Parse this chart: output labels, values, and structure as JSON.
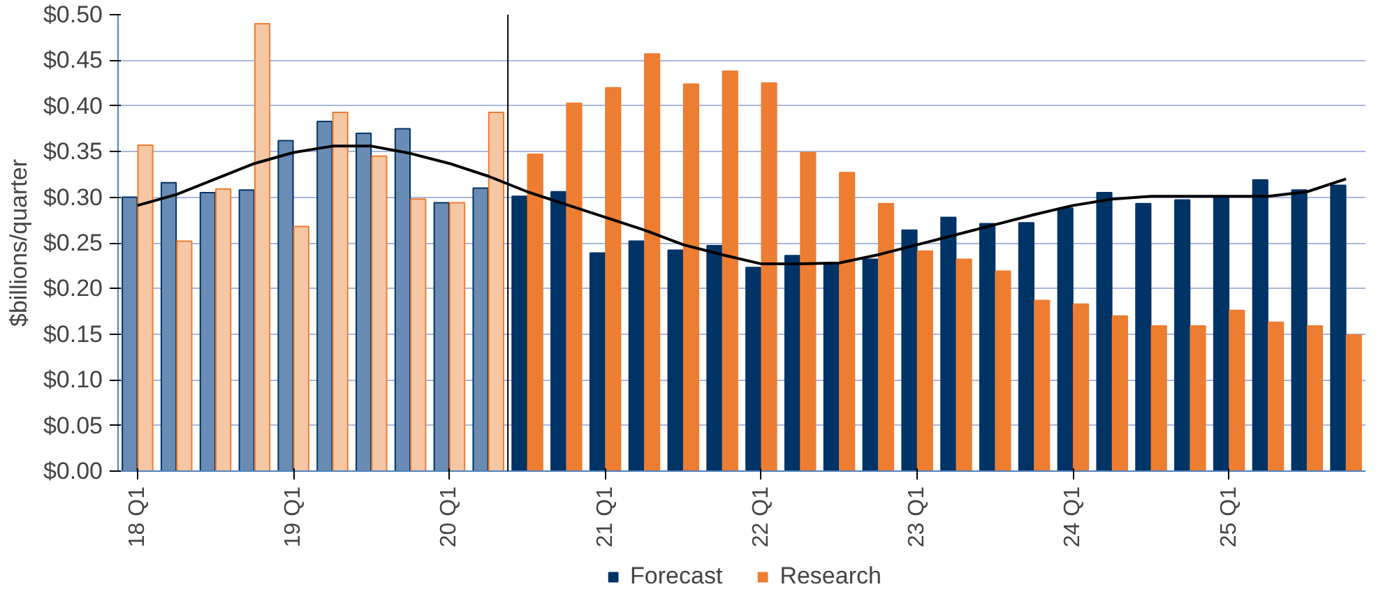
{
  "chart_data": {
    "type": "bar",
    "ylabel": "$billions/quarter",
    "categories": [
      "18 Q1",
      null,
      null,
      null,
      "19 Q1",
      null,
      null,
      null,
      "20 Q1",
      null,
      null,
      null,
      "21 Q1",
      null,
      null,
      null,
      "22 Q1",
      null,
      null,
      null,
      "23 Q1",
      null,
      null,
      null,
      "24 Q1",
      null,
      null,
      null,
      "25 Q1",
      null,
      null,
      null
    ],
    "series": [
      {
        "name": "Forecast",
        "color": "#003366",
        "colors": [
          "#6a8cb4",
          "#6a8cb4",
          "#6a8cb4",
          "#6a8cb4",
          "#6a8cb4",
          "#6a8cb4",
          "#6a8cb4",
          "#6a8cb4",
          "#6a8cb4",
          "#6a8cb4",
          "#003366",
          "#003366",
          "#003366",
          "#003366",
          "#003366",
          "#003366",
          "#003366",
          "#003366",
          "#003366",
          "#003366",
          "#003366",
          "#003366",
          "#003366",
          "#003366",
          "#003366",
          "#003366",
          "#003366",
          "#003366",
          "#003366",
          "#003366",
          "#003366",
          "#003366"
        ],
        "values": [
          0.3,
          0.316,
          0.305,
          0.308,
          0.362,
          0.383,
          0.37,
          0.375,
          0.294,
          0.31,
          0.301,
          0.306,
          0.239,
          0.252,
          0.242,
          0.247,
          0.223,
          0.236,
          0.228,
          0.232,
          0.264,
          0.278,
          0.271,
          0.272,
          0.288,
          0.305,
          0.293,
          0.297,
          0.301,
          0.319,
          0.308,
          0.313
        ]
      },
      {
        "name": "Research",
        "color": "#ed7d31",
        "colors": [
          "#f5c7a4",
          "#f5c7a4",
          "#f5c7a4",
          "#f5c7a4",
          "#f5c7a4",
          "#f5c7a4",
          "#f5c7a4",
          "#f5c7a4",
          "#f5c7a4",
          "#f5c7a4",
          "#ed7d31",
          "#ed7d31",
          "#ed7d31",
          "#ed7d31",
          "#ed7d31",
          "#ed7d31",
          "#ed7d31",
          "#ed7d31",
          "#ed7d31",
          "#ed7d31",
          "#ed7d31",
          "#ed7d31",
          "#ed7d31",
          "#ed7d31",
          "#ed7d31",
          "#ed7d31",
          "#ed7d31",
          "#ed7d31",
          "#ed7d31",
          "#ed7d31",
          "#ed7d31",
          "#ed7d31"
        ],
        "values": [
          0.357,
          0.252,
          0.309,
          0.49,
          0.268,
          0.393,
          0.345,
          0.298,
          0.294,
          0.393,
          0.347,
          0.403,
          0.42,
          0.457,
          0.424,
          0.438,
          0.425,
          0.349,
          0.327,
          0.293,
          0.241,
          0.232,
          0.219,
          0.187,
          0.183,
          0.17,
          0.159,
          0.159,
          0.176,
          0.163,
          0.159,
          0.149
        ]
      },
      {
        "type": "line",
        "color": "#000000",
        "values": [
          0.291,
          0.303,
          0.32,
          0.337,
          0.349,
          0.356,
          0.356,
          0.348,
          0.337,
          0.323,
          0.306,
          0.292,
          0.278,
          0.264,
          0.248,
          0.237,
          0.227,
          0.227,
          0.228,
          0.237,
          0.248,
          0.259,
          0.27,
          0.281,
          0.291,
          0.298,
          0.301,
          0.301,
          0.301,
          0.301,
          0.306,
          0.32
        ]
      }
    ],
    "ylim": [
      0,
      0.5
    ],
    "yticks": [
      {
        "value": 0,
        "label": "$0.00"
      },
      {
        "value": 0.05,
        "label": "$0.05"
      },
      {
        "value": 0.1,
        "label": "$0.10"
      },
      {
        "value": 0.15,
        "label": "$0.15"
      },
      {
        "value": 0.2,
        "label": "$0.20"
      },
      {
        "value": 0.25,
        "label": "$0.25"
      },
      {
        "value": 0.3,
        "label": "$0.30"
      },
      {
        "value": 0.35,
        "label": "$0.35"
      },
      {
        "value": 0.4,
        "label": "$0.40"
      },
      {
        "value": 0.45,
        "label": "$0.45"
      },
      {
        "value": 0.5,
        "label": "$0.50"
      }
    ],
    "grid": "y",
    "legend": "bottom",
    "line_style": "solid",
    "marker": "none"
  }
}
